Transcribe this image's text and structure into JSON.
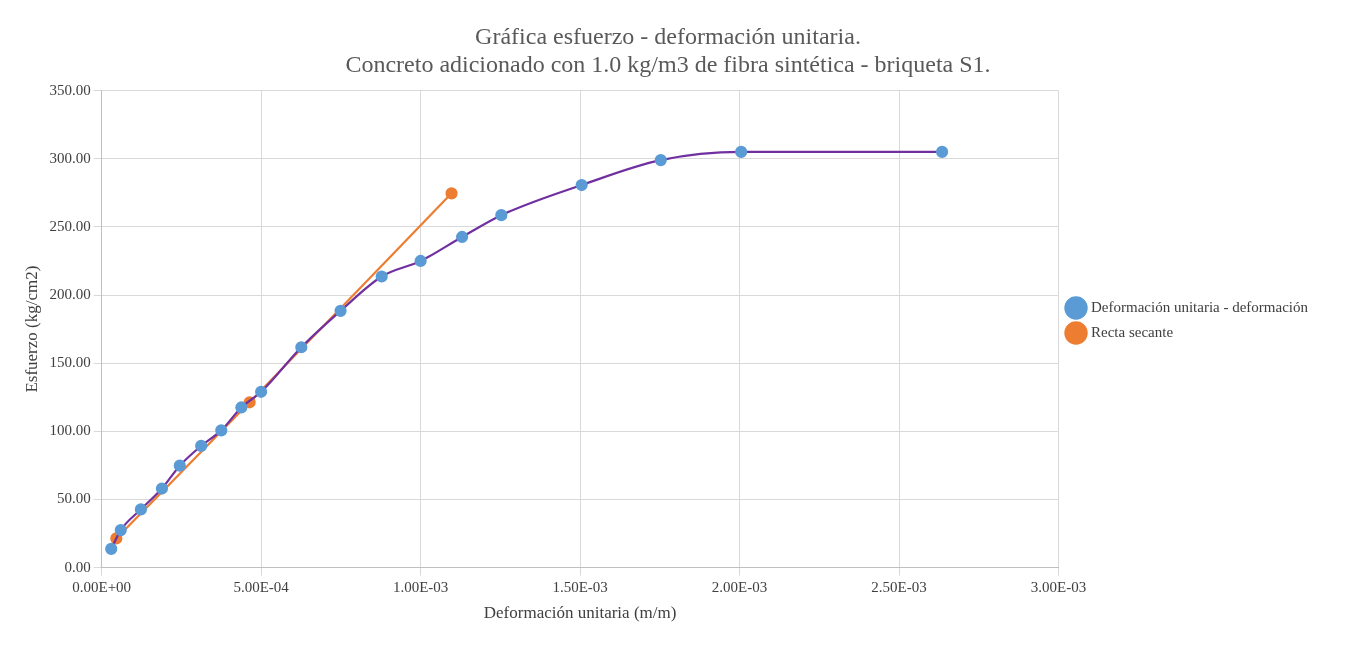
{
  "chart_data": {
    "type": "line",
    "title": "Gráfica esfuerzo - deformación unitaria.\nConcreto adicionado con 1.0 kg/m3 de fibra sintética - briqueta S1.",
    "xlabel": "Deformación unitaria (m/m)",
    "ylabel": "Esfuerzo (kg/cm2)",
    "xlim": [
      0,
      0.003
    ],
    "ylim": [
      0,
      350
    ],
    "xticks": [
      {
        "value": 0,
        "label": "0.00E+00"
      },
      {
        "value": 0.0005,
        "label": "5.00E-04"
      },
      {
        "value": 0.001,
        "label": "1.00E-03"
      },
      {
        "value": 0.0015,
        "label": "1.50E-03"
      },
      {
        "value": 0.002,
        "label": "2.00E-03"
      },
      {
        "value": 0.0025,
        "label": "2.50E-03"
      },
      {
        "value": 0.003,
        "label": "3.00E-03"
      }
    ],
    "yticks": [
      {
        "value": 0,
        "label": "0.00"
      },
      {
        "value": 50,
        "label": "50.00"
      },
      {
        "value": 100,
        "label": "100.00"
      },
      {
        "value": 150,
        "label": "150.00"
      },
      {
        "value": 200,
        "label": "200.00"
      },
      {
        "value": 250,
        "label": "250.00"
      },
      {
        "value": 300,
        "label": "300.00"
      },
      {
        "value": 350,
        "label": "350.00"
      }
    ],
    "grid": true,
    "legend": "right",
    "marker": "circle",
    "line_style": "solid",
    "series": [
      {
        "name": "Deformación unitaria - deformación",
        "color": "#7030a0",
        "colors": [
          "#5b9bd5",
          "#5b9bd5",
          "#5b9bd5",
          "#5b9bd5",
          "#5b9bd5",
          "#5b9bd5",
          "#5b9bd5",
          "#5b9bd5",
          "#5b9bd5",
          "#5b9bd5",
          "#5b9bd5",
          "#5b9bd5",
          "#5b9bd5",
          "#5b9bd5",
          "#5b9bd5",
          "#5b9bd5",
          "#5b9bd5",
          "#5b9bd5",
          "#5b9bd5"
        ],
        "x": [
          3e-05,
          6e-05,
          0.000123,
          0.000189,
          0.000245,
          0.000312,
          0.000375,
          0.000438,
          0.0005,
          0.000626,
          0.000749,
          0.000878,
          0.001,
          0.00113,
          0.001253,
          0.001505,
          0.001753,
          0.002005,
          0.002635
        ],
        "values": [
          13.7,
          27.5,
          42.7,
          58,
          74.8,
          89.3,
          100.7,
          117.5,
          129,
          161.7,
          188.4,
          213.6,
          225,
          242.6,
          258.6,
          280.7,
          299,
          305,
          305
        ]
      },
      {
        "name": "Recta secante",
        "color": "#ed7d31",
        "x": [
          4.6e-05,
          0.000464,
          0.001097
        ],
        "values": [
          21.4,
          121.3,
          274.6
        ]
      }
    ]
  }
}
